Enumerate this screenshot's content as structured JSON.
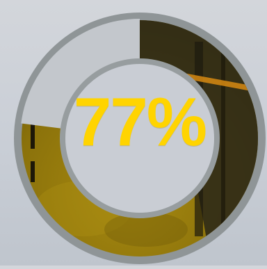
{
  "progress": {
    "fraction": 0.77,
    "label": "77%"
  },
  "colors": {
    "background": "#cdd1d8",
    "ring_outer": "#8f9597",
    "ring_inner_border": "#979d9f",
    "track_remaining": "#c3c7cc",
    "fill_tint": "#e0b400",
    "center": "#c9cdd4",
    "label": "#ffd400"
  }
}
